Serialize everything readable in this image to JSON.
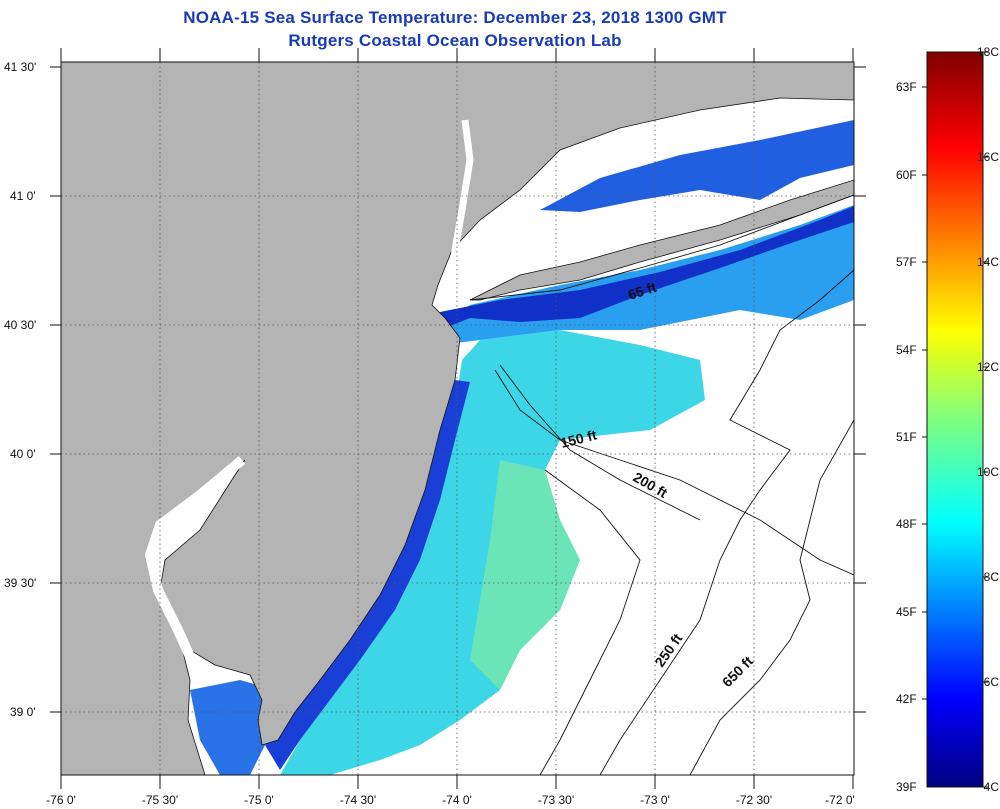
{
  "title_line1": "NOAA-15 Sea Surface Temperature:  December 23, 2018 1300 GMT",
  "title_line2": "Rutgers Coastal Ocean Observation Lab",
  "lat_ticks": [
    "41 30'",
    "41 0'",
    "40 30'",
    "40 0'",
    "39 30'",
    "39 0'"
  ],
  "lon_ticks": [
    "-76 0'",
    "-75 30'",
    "-75 0'",
    "-74 30'",
    "-74 0'",
    "-73 30'",
    "-73 0'",
    "-72 30'",
    "-72 0'"
  ],
  "contour_labels": [
    "65 ft",
    "150 ft",
    "200 ft",
    "250 ft",
    "650 ft"
  ],
  "colorbar": {
    "fahrenheit_ticks": [
      "63F",
      "60F",
      "57F",
      "54F",
      "51F",
      "48F",
      "45F",
      "42F",
      "39F"
    ],
    "celsius_ticks": [
      "18C",
      "16C",
      "14C",
      "12C",
      "10C",
      "8C",
      "6C",
      "4C"
    ],
    "min_c": 4,
    "max_c": 18
  },
  "colors": {
    "land": "#b4b4b4",
    "cloud": "#ffffff",
    "title": "#1a3bb8"
  }
}
